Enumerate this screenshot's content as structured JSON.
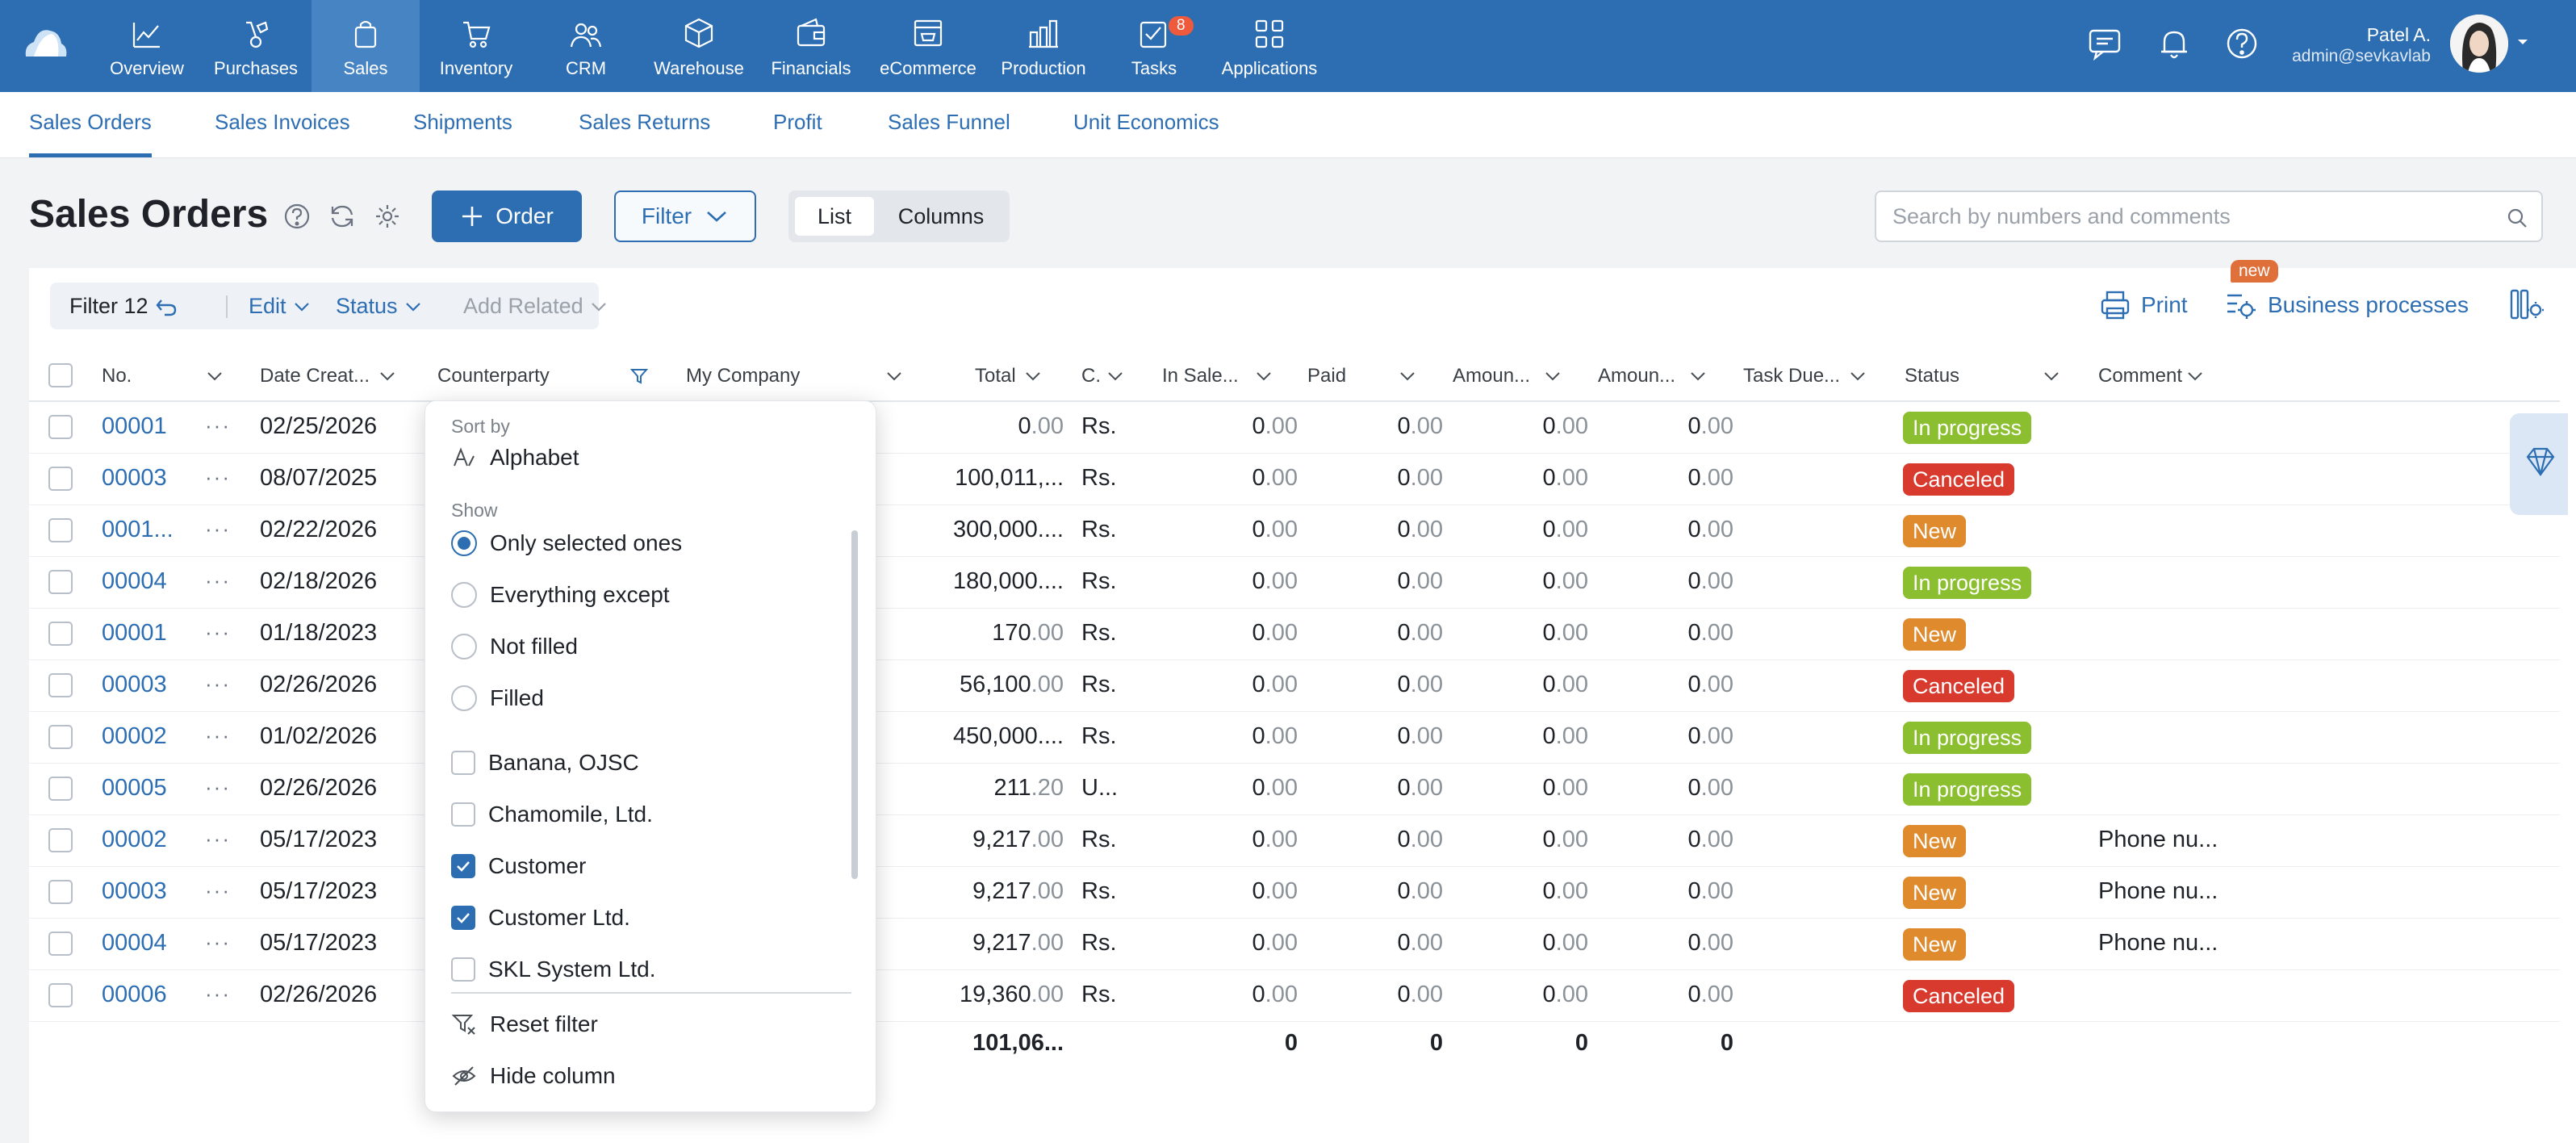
{
  "topnav": {
    "items": [
      {
        "label": "Overview",
        "icon": "chart-line-icon"
      },
      {
        "label": "Purchases",
        "icon": "shopping-bag-icon"
      },
      {
        "label": "Sales",
        "icon": "sales-bag-icon"
      },
      {
        "label": "Inventory",
        "icon": "cart-icon"
      },
      {
        "label": "CRM",
        "icon": "people-icon"
      },
      {
        "label": "Warehouse",
        "icon": "box-icon"
      },
      {
        "label": "Financials",
        "icon": "wallet-icon"
      },
      {
        "label": "eCommerce",
        "icon": "store-icon"
      },
      {
        "label": "Production",
        "icon": "factory-icon"
      },
      {
        "label": "Tasks",
        "icon": "tasks-icon",
        "badge": "8"
      },
      {
        "label": "Applications",
        "icon": "apps-icon"
      }
    ],
    "active": "Sales",
    "user": {
      "name": "Patel A.",
      "email": "admin@sevkavlab"
    }
  },
  "subnav": {
    "items": [
      "Sales Orders",
      "Sales Invoices",
      "Shipments",
      "Sales Returns",
      "Profit",
      "Sales Funnel",
      "Unit Economics"
    ],
    "active": "Sales Orders"
  },
  "page": {
    "title": "Sales Orders",
    "order_button": "Order",
    "filter_button": "Filter",
    "view_list": "List",
    "view_columns": "Columns",
    "search_placeholder": "Search by numbers and comments"
  },
  "toolbar": {
    "filter_label": "Filter 12",
    "edit": "Edit",
    "status": "Status",
    "add_related": "Add Related",
    "print": "Print",
    "business_processes": "Business processes",
    "new_badge": "new"
  },
  "columns": {
    "no": "No.",
    "date": "Date Creat...",
    "counterparty": "Counterparty",
    "my_company": "My Company",
    "total": "Total",
    "currency": "C.",
    "in_sale": "In Sale...",
    "paid": "Paid",
    "amount1": "Amoun...",
    "amount2": "Amoun...",
    "task_due": "Task Due...",
    "status": "Status",
    "comment": "Comment"
  },
  "rows": [
    {
      "no": "00001",
      "date": "02/25/2026",
      "total_int": "0",
      "total_dec": ".00",
      "cur": "Rs.",
      "status": "In progress",
      "status_color": "#8cbf2f",
      "comment": ""
    },
    {
      "no": "00003",
      "date": "08/07/2025",
      "total_int": "100,011,...",
      "total_dec": "",
      "cur": "Rs.",
      "status": "Canceled",
      "status_color": "#d93a2e",
      "comment": ""
    },
    {
      "no": "0001...",
      "date": "02/22/2026",
      "total_int": "300,000....",
      "total_dec": "",
      "cur": "Rs.",
      "status": "New",
      "status_color": "#e08a2e",
      "comment": ""
    },
    {
      "no": "00004",
      "date": "02/18/2026",
      "total_int": "180,000....",
      "total_dec": "",
      "cur": "Rs.",
      "status": "In progress",
      "status_color": "#8cbf2f",
      "comment": ""
    },
    {
      "no": "00001",
      "date": "01/18/2023",
      "total_int": "170",
      "total_dec": ".00",
      "cur": "Rs.",
      "status": "New",
      "status_color": "#e08a2e",
      "comment": ""
    },
    {
      "no": "00003",
      "date": "02/26/2026",
      "total_int": "56,100",
      "total_dec": ".00",
      "cur": "Rs.",
      "status": "Canceled",
      "status_color": "#d93a2e",
      "comment": ""
    },
    {
      "no": "00002",
      "date": "01/02/2026",
      "total_int": "450,000....",
      "total_dec": "",
      "cur": "Rs.",
      "status": "In progress",
      "status_color": "#8cbf2f",
      "comment": ""
    },
    {
      "no": "00005",
      "date": "02/26/2026",
      "total_int": "211",
      "total_dec": ".20",
      "cur": "U...",
      "status": "In progress",
      "status_color": "#8cbf2f",
      "comment": ""
    },
    {
      "no": "00002",
      "date": "05/17/2023",
      "total_int": "9,217",
      "total_dec": ".00",
      "cur": "Rs.",
      "status": "New",
      "status_color": "#e08a2e",
      "comment": "Phone nu..."
    },
    {
      "no": "00003",
      "date": "05/17/2023",
      "total_int": "9,217",
      "total_dec": ".00",
      "cur": "Rs.",
      "status": "New",
      "status_color": "#e08a2e",
      "comment": "Phone nu..."
    },
    {
      "no": "00004",
      "date": "05/17/2023",
      "total_int": "9,217",
      "total_dec": ".00",
      "cur": "Rs.",
      "status": "New",
      "status_color": "#e08a2e",
      "comment": "Phone nu..."
    },
    {
      "no": "00006",
      "date": "02/26/2026",
      "total_int": "19,360",
      "total_dec": ".00",
      "cur": "Rs.",
      "status": "Canceled",
      "status_color": "#d93a2e",
      "comment": ""
    }
  ],
  "zero_int": "0",
  "zero_dec": ".00",
  "row_dots": "···",
  "totals": {
    "total": "101,06...",
    "in_sale": "0",
    "paid": "0",
    "amount1": "0",
    "amount2": "0"
  },
  "dropdown": {
    "sort_by": "Sort by",
    "alphabet": "Alphabet",
    "show": "Show",
    "radio_options": [
      {
        "label": "Only selected ones",
        "selected": true
      },
      {
        "label": "Everything except",
        "selected": false
      },
      {
        "label": "Not filled",
        "selected": false
      },
      {
        "label": "Filled",
        "selected": false
      }
    ],
    "check_options": [
      {
        "label": "Banana, OJSC",
        "checked": false
      },
      {
        "label": "Chamomile, Ltd.",
        "checked": false
      },
      {
        "label": "Customer",
        "checked": true
      },
      {
        "label": "Customer Ltd.",
        "checked": true
      },
      {
        "label": "SKL System Ltd.",
        "checked": false
      }
    ],
    "reset_filter": "Reset filter",
    "hide_column": "Hide column"
  }
}
